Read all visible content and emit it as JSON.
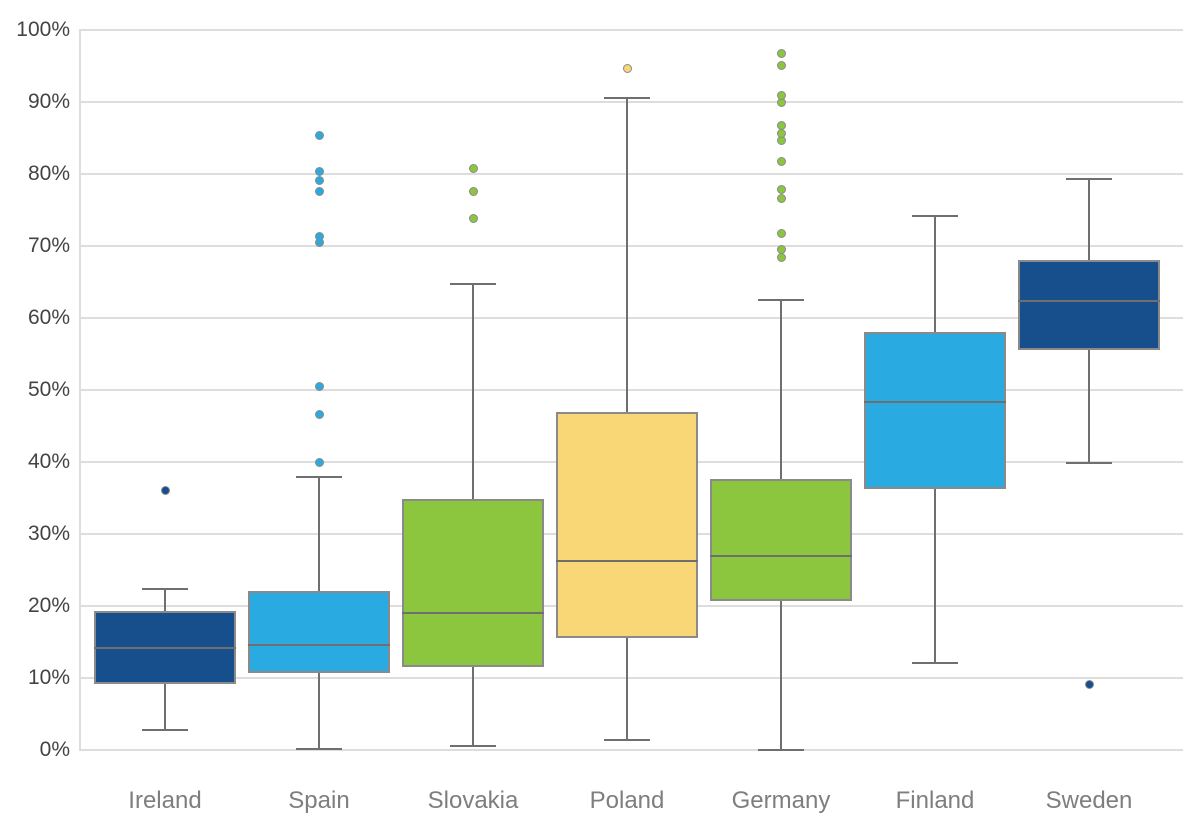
{
  "chart_data": {
    "type": "boxplot",
    "title": "",
    "xlabel": "",
    "ylabel": "",
    "grid": true,
    "legend": false,
    "y_axis": {
      "min": 0,
      "max": 100,
      "tick_step": 10,
      "ticks": [
        {
          "value": 0,
          "label": "0%"
        },
        {
          "value": 10,
          "label": "10%"
        },
        {
          "value": 20,
          "label": "20%"
        },
        {
          "value": 30,
          "label": "30%"
        },
        {
          "value": 40,
          "label": "40%"
        },
        {
          "value": 50,
          "label": "50%"
        },
        {
          "value": 60,
          "label": "60%"
        },
        {
          "value": 70,
          "label": "70%"
        },
        {
          "value": 80,
          "label": "80%"
        },
        {
          "value": 90,
          "label": "90%"
        },
        {
          "value": 100,
          "label": "100%"
        }
      ]
    },
    "categories": [
      "Ireland",
      "Spain",
      "Slovakia",
      "Poland",
      "Germany",
      "Finland",
      "Sweden"
    ],
    "series": [
      {
        "name": "Ireland",
        "color": "#174F8C",
        "whisker_low": 2.8,
        "q1": 9.2,
        "median": 14.1,
        "q3": 19.3,
        "whisker_high": 22.3,
        "outliers": [
          36.1
        ]
      },
      {
        "name": "Spain",
        "color": "#29ABE2",
        "whisker_low": 0.2,
        "q1": 10.7,
        "median": 14.6,
        "q3": 22.1,
        "whisker_high": 37.9,
        "outliers": [
          40.0,
          46.6,
          50.5,
          70.5,
          71.3,
          77.6,
          79.1,
          80.3,
          85.4
        ]
      },
      {
        "name": "Slovakia",
        "color": "#8CC63F",
        "whisker_low": 0.6,
        "q1": 11.5,
        "median": 19.0,
        "q3": 34.9,
        "whisker_high": 64.7,
        "outliers": [
          73.8,
          77.6,
          80.7
        ]
      },
      {
        "name": "Poland",
        "color": "#FAD776",
        "whisker_low": 1.4,
        "q1": 15.6,
        "median": 26.3,
        "q3": 47.0,
        "whisker_high": 90.6,
        "outliers": [
          94.7
        ]
      },
      {
        "name": "Germany",
        "color": "#8CC63F",
        "whisker_low": 0.0,
        "q1": 20.7,
        "median": 26.9,
        "q3": 37.7,
        "whisker_high": 62.5,
        "outliers": [
          68.4,
          69.5,
          71.8,
          76.6,
          77.9,
          81.7,
          84.7,
          85.6,
          86.7,
          90.0,
          90.9,
          95.1,
          96.8
        ]
      },
      {
        "name": "Finland",
        "color": "#29ABE2",
        "whisker_low": 12.1,
        "q1": 36.3,
        "median": 48.4,
        "q3": 58.0,
        "whisker_high": 74.2,
        "outliers": []
      },
      {
        "name": "Sweden",
        "color": "#174F8C",
        "whisker_low": 39.9,
        "q1": 55.5,
        "median": 62.3,
        "q3": 68.1,
        "whisker_high": 79.3,
        "outliers": [
          9.1
        ]
      }
    ]
  },
  "styles": {
    "background": "#FFFFFF",
    "gridline_color": "#DDDDDD",
    "axis_line_color": "#DDDDDD",
    "box_border_color": "#8A8A8A",
    "whisker_color": "#6F6F6F",
    "median_color": "#6F6F6F",
    "outlier_ring_color": "#8A8A8A",
    "y_tick_label_color": "#444444",
    "x_category_label_color": "#7E7E7E"
  }
}
